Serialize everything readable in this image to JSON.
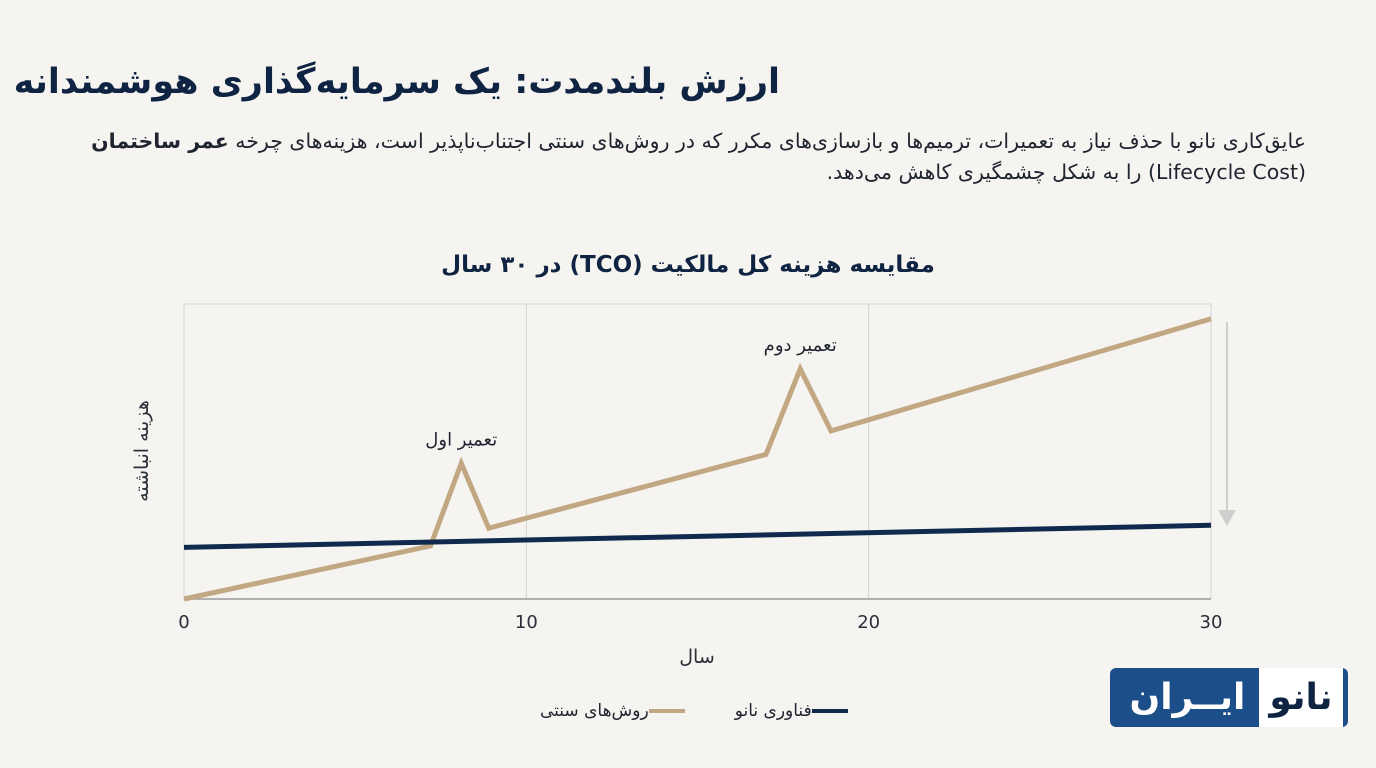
{
  "header": {
    "title": "ارزش بلندمدت: یک سرمایه‌گذاری هوشمندانه",
    "subtitle_part1": "عایق‌کاری نانو با حذف نیاز به تعمیرات، ترمیم‌ها و بازسازی‌های مکرر که در روش‌های سنتی اجتناب‌ناپذیر است، هزینه‌های چرخه ",
    "subtitle_bold": "عمر ساختمان",
    "subtitle_part2": " (Lifecycle Cost) را به شکل چشمگیری کاهش می‌دهد."
  },
  "chart_data": {
    "type": "line",
    "title": "مقایسه هزینه کل مالکیت (TCO) در ۳۰ سال",
    "xlabel": "سال",
    "ylabel": "هزینه انباشته",
    "xlim": [
      0,
      30
    ],
    "ylim": [
      0,
      100
    ],
    "x_ticks": [
      0,
      10,
      20,
      30
    ],
    "x_tick_labels": [
      "0",
      "10",
      "20",
      "30"
    ],
    "y_tick_labels": [],
    "grid": true,
    "legend": "bottom",
    "series": [
      {
        "name": "روش‌های سنتی",
        "color": "#c2a882",
        "points": [
          [
            0,
            0
          ],
          [
            7.2,
            18
          ],
          [
            8.1,
            46
          ],
          [
            8.9,
            24
          ],
          [
            17,
            49
          ],
          [
            18,
            78
          ],
          [
            18.9,
            57
          ],
          [
            30,
            95
          ]
        ]
      },
      {
        "name": "فناوری نانو",
        "color": "#0f2a4d",
        "points": [
          [
            0,
            17.5
          ],
          [
            30,
            25
          ]
        ]
      }
    ],
    "annotations": [
      {
        "text": "تعمیر اول",
        "x": 8.1,
        "y": 46
      },
      {
        "text": "تعمیر دوم",
        "x": 18,
        "y": 78
      }
    ]
  },
  "logo": {
    "part1": "نانو",
    "part2": "ایــران"
  }
}
